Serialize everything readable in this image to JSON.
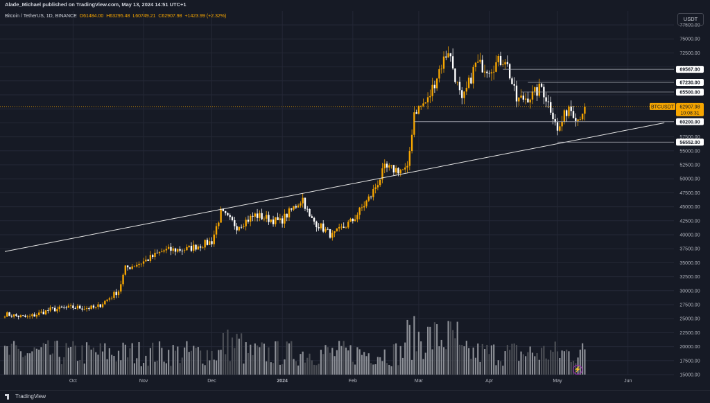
{
  "header": {
    "publisher": "Alade_Michael published on TradingView.com, May 13, 2024 14:51 UTC+1",
    "symbol": "Bitcoin / TetherUS, 1D, BINANCE",
    "open": "O61484.00",
    "high": "H63295.48",
    "low": "L60749.21",
    "close": "C62907.98",
    "change": "+1423.99 (+2.32%)",
    "currency": "USDT"
  },
  "footer": {
    "brand": "TradingView"
  },
  "colors": {
    "background": "#161a25",
    "up": "#f7a600",
    "down": "#ffffff",
    "grid": "#242836",
    "price_line": "#f7a600"
  },
  "chart_data": {
    "type": "candlestick",
    "ylim": [
      15000,
      77500
    ],
    "yticks": [
      15000,
      17500,
      20000,
      22500,
      25000,
      27500,
      30000,
      32500,
      35000,
      37500,
      40000,
      42500,
      45000,
      47500,
      50000,
      52500,
      55000,
      57500,
      60000,
      62500,
      65000,
      67500,
      70000,
      72500,
      75000,
      77500
    ],
    "xticks": [
      {
        "label": "Oct",
        "bold": false
      },
      {
        "label": "Nov",
        "bold": false
      },
      {
        "label": "Dec",
        "bold": false
      },
      {
        "label": "2024",
        "bold": true
      },
      {
        "label": "Feb",
        "bold": false
      },
      {
        "label": "Mar",
        "bold": false
      },
      {
        "label": "Apr",
        "bold": false
      },
      {
        "label": "May",
        "bold": false
      },
      {
        "label": "Jun",
        "bold": false
      }
    ],
    "current_price": {
      "symbol": "BTCUSDT",
      "value": 62907.98,
      "label": "62907.98",
      "countdown": "10:08:31"
    },
    "levels": [
      {
        "label": "69567.00",
        "value": 69567
      },
      {
        "label": "67230.00",
        "value": 67230
      },
      {
        "label": "65500.00",
        "value": 65500
      },
      {
        "label": "60200.00",
        "value": 60200
      },
      {
        "label": "56552.00",
        "value": 56552
      }
    ],
    "trendline": {
      "from": {
        "date": "2023-09-01",
        "price": 37000
      },
      "to": {
        "date": "2024-06-17",
        "price": 60000
      }
    },
    "close_anchors": [
      [
        "2023-09-01",
        25800
      ],
      [
        "2023-09-11",
        25200
      ],
      [
        "2023-09-21",
        26600
      ],
      [
        "2023-10-01",
        27000
      ],
      [
        "2023-10-11",
        26900
      ],
      [
        "2023-10-16",
        28400
      ],
      [
        "2023-10-21",
        30000
      ],
      [
        "2023-10-24",
        34000
      ],
      [
        "2023-11-01",
        35200
      ],
      [
        "2023-11-10",
        37200
      ],
      [
        "2023-11-20",
        37400
      ],
      [
        "2023-12-01",
        38800
      ],
      [
        "2023-12-05",
        44000
      ],
      [
        "2023-12-12",
        41500
      ],
      [
        "2023-12-20",
        43500
      ],
      [
        "2023-12-31",
        42300
      ],
      [
        "2024-01-10",
        46500
      ],
      [
        "2024-01-13",
        43000
      ],
      [
        "2024-01-23",
        39800
      ],
      [
        "2024-02-01",
        42600
      ],
      [
        "2024-02-09",
        47000
      ],
      [
        "2024-02-15",
        51800
      ],
      [
        "2024-02-25",
        51500
      ],
      [
        "2024-02-28",
        62000
      ],
      [
        "2024-03-05",
        64000
      ],
      [
        "2024-03-10",
        69500
      ],
      [
        "2024-03-14",
        73100
      ],
      [
        "2024-03-20",
        63500
      ],
      [
        "2024-03-26",
        70500
      ],
      [
        "2024-04-01",
        69800
      ],
      [
        "2024-04-08",
        71600
      ],
      [
        "2024-04-13",
        64000
      ],
      [
        "2024-04-20",
        64900
      ],
      [
        "2024-04-24",
        66400
      ],
      [
        "2024-04-30",
        60600
      ],
      [
        "2024-05-01",
        58300
      ],
      [
        "2024-05-06",
        63100
      ],
      [
        "2024-05-10",
        60800
      ],
      [
        "2024-05-13",
        62908
      ]
    ]
  }
}
